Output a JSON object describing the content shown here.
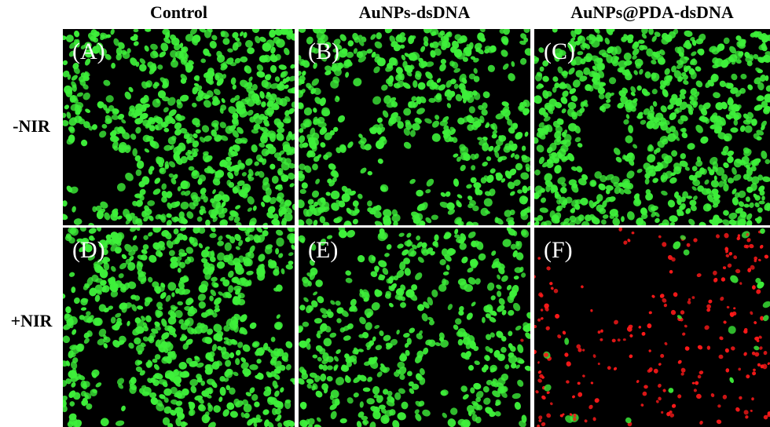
{
  "columns": [
    "Control",
    "AuNPs-dsDNA",
    "AuNPs@PDA-dsDNA"
  ],
  "rows": [
    "-NIR",
    "+NIR"
  ],
  "panels": [
    {
      "label": "(A)",
      "live_color": "#3ef03a",
      "dead_color": "#ff1a1a",
      "dead_fraction": 0.0
    },
    {
      "label": "(B)",
      "live_color": "#3ef03a",
      "dead_color": "#ff1a1a",
      "dead_fraction": 0.0
    },
    {
      "label": "(C)",
      "live_color": "#3ef03a",
      "dead_color": "#ff1a1a",
      "dead_fraction": 0.0
    },
    {
      "label": "(D)",
      "live_color": "#3ef03a",
      "dead_color": "#ff1a1a",
      "dead_fraction": 0.0
    },
    {
      "label": "(E)",
      "live_color": "#3ef03a",
      "dead_color": "#ff1a1a",
      "dead_fraction": 0.01
    },
    {
      "label": "(F)",
      "live_color": "#3ef03a",
      "dead_color": "#ff1a1a",
      "dead_fraction": 0.92
    }
  ]
}
